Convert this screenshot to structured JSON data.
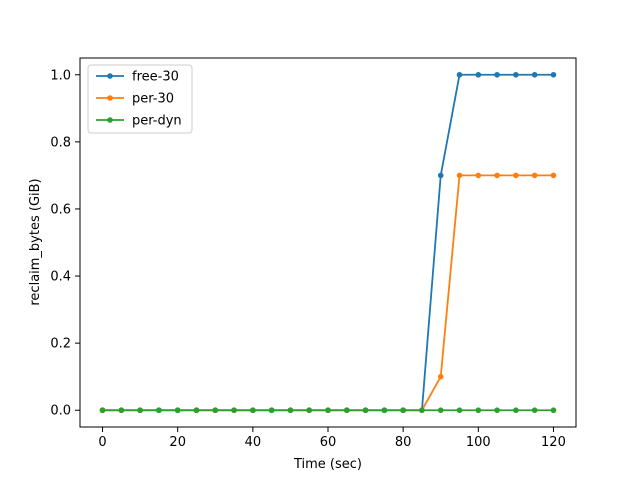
{
  "chart_data": {
    "type": "line",
    "title": "",
    "xlabel": "Time (sec)",
    "ylabel": "reclaim_bytes (GiB)",
    "xlim": [
      -6,
      126
    ],
    "ylim": [
      -0.05,
      1.05
    ],
    "xticks": [
      0,
      20,
      40,
      60,
      80,
      100,
      120
    ],
    "yticks": [
      0.0,
      0.2,
      0.4,
      0.6,
      0.8,
      1.0
    ],
    "xtick_labels": [
      "0",
      "20",
      "40",
      "60",
      "80",
      "100",
      "120"
    ],
    "ytick_labels": [
      "0.0",
      "0.2",
      "0.4",
      "0.6",
      "0.8",
      "1.0"
    ],
    "grid": false,
    "legend_position": "top-left",
    "x": [
      0,
      5,
      10,
      15,
      20,
      25,
      30,
      35,
      40,
      45,
      50,
      55,
      60,
      65,
      70,
      75,
      80,
      85,
      90,
      95,
      100,
      105,
      110,
      115,
      120
    ],
    "series": [
      {
        "name": "free-30",
        "color": "#1f77b4",
        "values": [
          0,
          0,
          0,
          0,
          0,
          0,
          0,
          0,
          0,
          0,
          0,
          0,
          0,
          0,
          0,
          0,
          0,
          0,
          0.7,
          1.0,
          1.0,
          1.0,
          1.0,
          1.0,
          1.0
        ]
      },
      {
        "name": "per-30",
        "color": "#ff7f0e",
        "values": [
          0,
          0,
          0,
          0,
          0,
          0,
          0,
          0,
          0,
          0,
          0,
          0,
          0,
          0,
          0,
          0,
          0,
          0,
          0.1,
          0.7,
          0.7,
          0.7,
          0.7,
          0.7,
          0.7
        ]
      },
      {
        "name": "per-dyn",
        "color": "#2ca02c",
        "values": [
          0,
          0,
          0,
          0,
          0,
          0,
          0,
          0,
          0,
          0,
          0,
          0,
          0,
          0,
          0,
          0,
          0,
          0,
          0,
          0,
          0,
          0,
          0,
          0,
          0
        ]
      }
    ]
  }
}
